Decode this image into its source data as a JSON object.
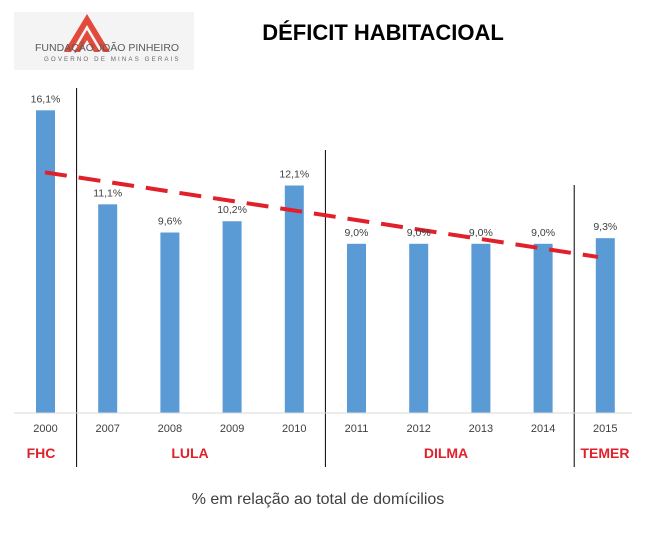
{
  "logo": {
    "name": "FUNDAÇÃO JOÃO PINHEIRO",
    "subtitle": "GOVERNO DE MINAS GERAIS"
  },
  "chart_data": {
    "type": "bar",
    "title": "DÉFICIT HABITACIOAL",
    "categories": [
      "2000",
      "2007",
      "2008",
      "2009",
      "2010",
      "2011",
      "2012",
      "2013",
      "2014",
      "2015"
    ],
    "values": [
      16.1,
      11.1,
      9.6,
      10.2,
      12.1,
      9.0,
      9.0,
      9.0,
      9.0,
      9.3
    ],
    "value_labels": [
      "16,1%",
      "11,1%",
      "9,6%",
      "10,2%",
      "12,1%",
      "9,0%",
      "9,0%",
      "9,0%",
      "9,0%",
      "9,3%"
    ],
    "ylim": [
      0,
      17
    ],
    "grid": false,
    "bar_color": "#5b9bd5",
    "trendline": {
      "style": "dashed",
      "color": "#e0202a",
      "start_value": 12.8,
      "end_value": 8.3
    },
    "periods": [
      {
        "label": "FHC",
        "first": 0,
        "last": 0
      },
      {
        "label": "LULA",
        "first": 1,
        "last": 4
      },
      {
        "label": "DILMA",
        "first": 5,
        "last": 8
      },
      {
        "label": "TEMER",
        "first": 9,
        "last": 9
      }
    ],
    "caption": "% em relação ao total de domícilios"
  },
  "colors": {
    "accent": "#e0202a",
    "bar": "#5b9bd5",
    "text": "#404040"
  }
}
